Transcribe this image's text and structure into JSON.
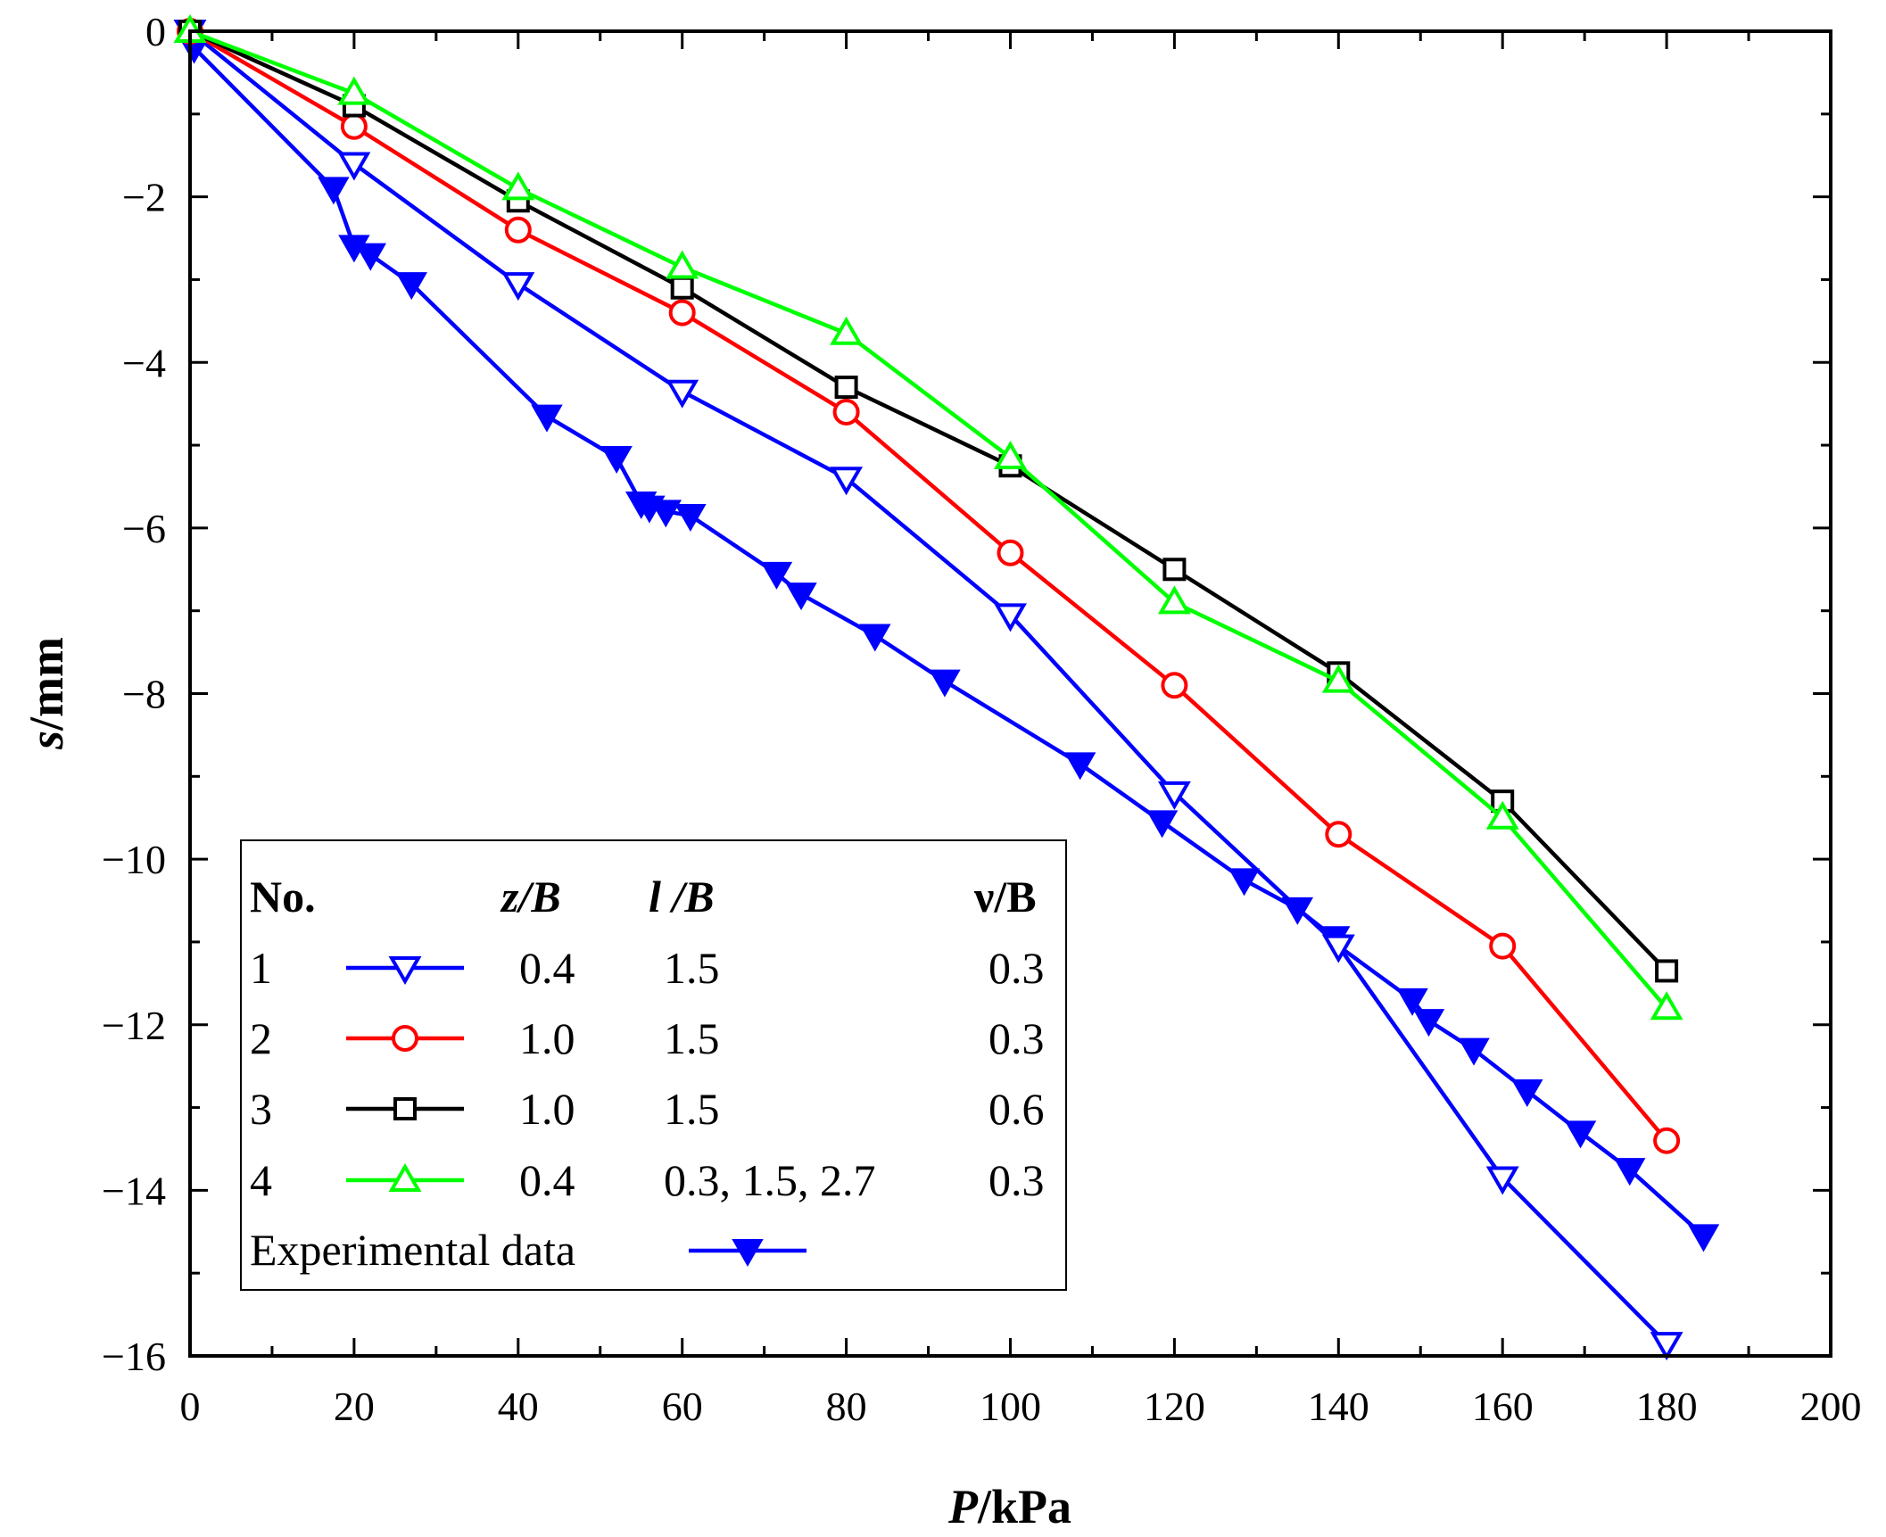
{
  "chart_data": {
    "type": "line",
    "xlabel": {
      "var": "P",
      "unit": "/kPa"
    },
    "ylabel": {
      "var": "s",
      "unit": "/mm"
    },
    "xlim": [
      0,
      200
    ],
    "ylim": [
      -16,
      0
    ],
    "xticks": [
      0,
      20,
      40,
      60,
      80,
      100,
      120,
      140,
      160,
      180,
      200
    ],
    "yticks": [
      0,
      -2,
      -4,
      -6,
      -8,
      -10,
      -12,
      -14,
      -16
    ],
    "legend": {
      "placement": "bottom-left",
      "headers": [
        "No.",
        "z/B",
        "l /B",
        "ν/B"
      ],
      "rows": [
        {
          "no": "1",
          "zb": "0.4",
          "lb": "1.5",
          "vb": "0.3"
        },
        {
          "no": "2",
          "zb": "1.0",
          "lb": "1.5",
          "vb": "0.3"
        },
        {
          "no": "3",
          "zb": "1.0",
          "lb": "1.5",
          "vb": "0.6"
        },
        {
          "no": "4",
          "zb": "0.4",
          "lb": "0.3, 1.5, 2.7",
          "vb": "0.3"
        }
      ],
      "experimental_label": "Experimental data"
    },
    "series": [
      {
        "name": "1",
        "color": "#0000ff",
        "marker": "triangle-down-open",
        "x": [
          0,
          20,
          40,
          60,
          80,
          100,
          120,
          140,
          160,
          180
        ],
        "y": [
          0,
          -1.6,
          -3.05,
          -4.35,
          -5.4,
          -7.05,
          -9.2,
          -11.05,
          -13.85,
          -15.85
        ]
      },
      {
        "name": "2",
        "color": "#ff0000",
        "marker": "circle-open",
        "x": [
          0,
          20,
          40,
          60,
          80,
          100,
          120,
          140,
          160,
          180
        ],
        "y": [
          0,
          -1.15,
          -2.4,
          -3.4,
          -4.6,
          -6.3,
          -7.9,
          -9.7,
          -11.05,
          -13.4
        ]
      },
      {
        "name": "3",
        "color": "#000000",
        "marker": "square-open",
        "x": [
          0,
          20,
          40,
          60,
          80,
          100,
          120,
          140,
          160,
          180
        ],
        "y": [
          0,
          -0.9,
          -2.05,
          -3.1,
          -4.3,
          -5.25,
          -6.5,
          -7.75,
          -9.3,
          -11.35
        ]
      },
      {
        "name": "4",
        "color": "#00ff00",
        "marker": "triangle-up-open",
        "x": [
          0,
          20,
          40,
          60,
          80,
          100,
          120,
          140,
          160,
          180
        ],
        "y": [
          0,
          -0.75,
          -1.9,
          -2.85,
          -3.65,
          -5.15,
          -6.9,
          -7.85,
          -9.5,
          -11.8
        ]
      },
      {
        "name": "Experimental data",
        "color": "#0000ff",
        "marker": "triangle-down-filled",
        "x": [
          0,
          0.5,
          17.5,
          20,
          22,
          27,
          43.5,
          52,
          55,
          56,
          58,
          61,
          71.5,
          74.5,
          83.5,
          92,
          108.5,
          118.5,
          128.5,
          135,
          139.5,
          140,
          149,
          151,
          156.5,
          163,
          169.5,
          175.5,
          184.5
        ],
        "y": [
          0,
          -0.2,
          -1.9,
          -2.6,
          -2.7,
          -3.05,
          -4.65,
          -5.15,
          -5.7,
          -5.75,
          -5.8,
          -5.85,
          -6.55,
          -6.8,
          -7.3,
          -7.85,
          -8.85,
          -9.55,
          -10.25,
          -10.6,
          -10.95,
          -11.05,
          -11.7,
          -11.95,
          -12.3,
          -12.8,
          -13.3,
          -13.75,
          -14.55
        ]
      }
    ]
  }
}
